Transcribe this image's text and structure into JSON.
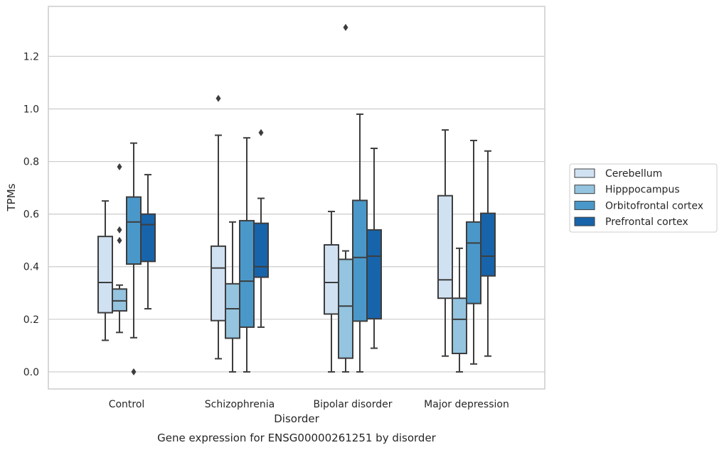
{
  "chart_data": {
    "type": "box",
    "caption": "Gene expression for ENSG00000261251 by disorder",
    "xlabel": "Disorder",
    "ylabel": "TPMs",
    "ylim": [
      -0.065,
      1.39
    ],
    "yticks": [
      "0.0",
      "0.2",
      "0.4",
      "0.6",
      "0.8",
      "1.0",
      "1.2"
    ],
    "grid": "horizontal",
    "legend_position": "right",
    "categories": [
      "Control",
      "Schizophrenia",
      "Bipolar disorder",
      "Major depression"
    ],
    "series": [
      {
        "name": "Cerebellum",
        "color": "#d0e1f2",
        "boxes": [
          {
            "whisker_low": 0.12,
            "q1": 0.225,
            "median": 0.34,
            "q3": 0.515,
            "whisker_high": 0.65,
            "outliers": []
          },
          {
            "whisker_low": 0.05,
            "q1": 0.195,
            "median": 0.395,
            "q3": 0.478,
            "whisker_high": 0.9,
            "outliers": [
              1.04
            ]
          },
          {
            "whisker_low": 0.0,
            "q1": 0.22,
            "median": 0.34,
            "q3": 0.483,
            "whisker_high": 0.61,
            "outliers": []
          },
          {
            "whisker_low": 0.06,
            "q1": 0.28,
            "median": 0.35,
            "q3": 0.67,
            "whisker_high": 0.92,
            "outliers": []
          }
        ]
      },
      {
        "name": "Hipppocampus",
        "color": "#94c4df",
        "boxes": [
          {
            "whisker_low": 0.15,
            "q1": 0.232,
            "median": 0.27,
            "q3": 0.315,
            "whisker_high": 0.33,
            "outliers": [
              0.5,
              0.54,
              0.78
            ]
          },
          {
            "whisker_low": 0.0,
            "q1": 0.128,
            "median": 0.24,
            "q3": 0.335,
            "whisker_high": 0.57,
            "outliers": []
          },
          {
            "whisker_low": 0.0,
            "q1": 0.052,
            "median": 0.25,
            "q3": 0.428,
            "whisker_high": 0.46,
            "outliers": [
              1.31
            ]
          },
          {
            "whisker_low": 0.0,
            "q1": 0.07,
            "median": 0.2,
            "q3": 0.28,
            "whisker_high": 0.47,
            "outliers": []
          }
        ]
      },
      {
        "name": "Orbitofrontal cortex",
        "color": "#4a98c9",
        "boxes": [
          {
            "whisker_low": 0.13,
            "q1": 0.41,
            "median": 0.57,
            "q3": 0.665,
            "whisker_high": 0.87,
            "outliers": [
              0.0
            ]
          },
          {
            "whisker_low": 0.0,
            "q1": 0.17,
            "median": 0.345,
            "q3": 0.575,
            "whisker_high": 0.89,
            "outliers": []
          },
          {
            "whisker_low": 0.0,
            "q1": 0.193,
            "median": 0.435,
            "q3": 0.652,
            "whisker_high": 0.98,
            "outliers": []
          },
          {
            "whisker_low": 0.03,
            "q1": 0.26,
            "median": 0.49,
            "q3": 0.57,
            "whisker_high": 0.88,
            "outliers": []
          }
        ]
      },
      {
        "name": "Prefrontal cortex",
        "color": "#1764ab",
        "boxes": [
          {
            "whisker_low": 0.24,
            "q1": 0.42,
            "median": 0.56,
            "q3": 0.6,
            "whisker_high": 0.75,
            "outliers": []
          },
          {
            "whisker_low": 0.17,
            "q1": 0.36,
            "median": 0.4,
            "q3": 0.565,
            "whisker_high": 0.66,
            "outliers": [
              0.91
            ]
          },
          {
            "whisker_low": 0.09,
            "q1": 0.202,
            "median": 0.44,
            "q3": 0.54,
            "whisker_high": 0.85,
            "outliers": []
          },
          {
            "whisker_low": 0.06,
            "q1": 0.365,
            "median": 0.44,
            "q3": 0.603,
            "whisker_high": 0.84,
            "outliers": []
          }
        ]
      }
    ]
  }
}
